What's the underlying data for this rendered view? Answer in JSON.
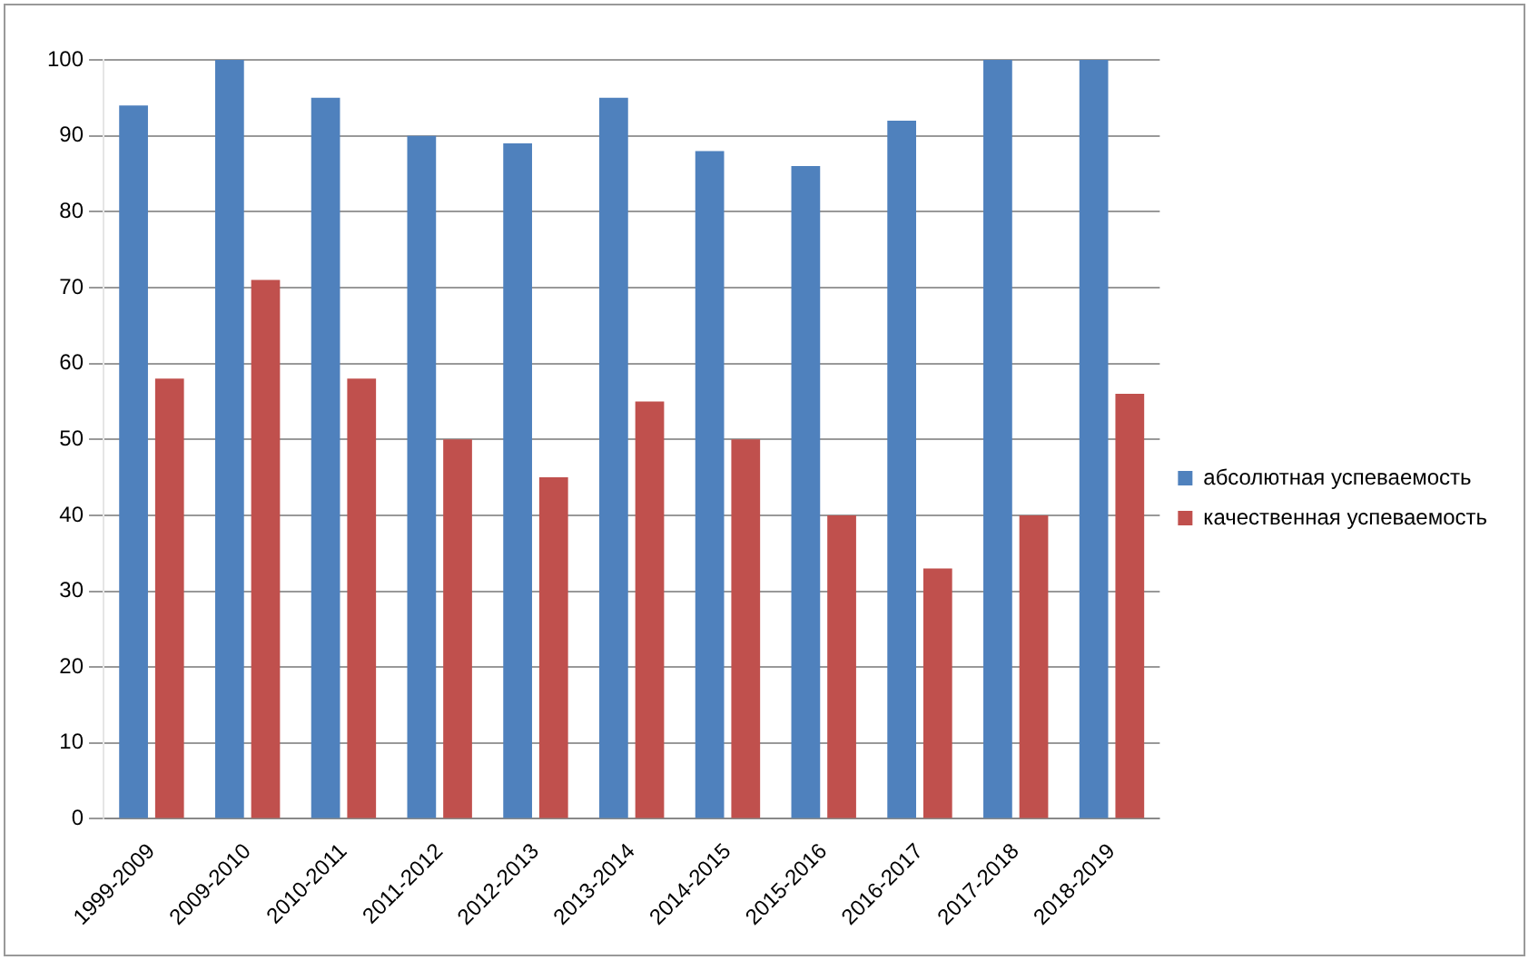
{
  "chart_data": {
    "type": "bar",
    "categories": [
      "1999-2009",
      "2009-2010",
      "2010-2011",
      "2011-2012",
      "2012-2013",
      "2013-2014",
      "2014-2015",
      "2015-2016",
      "2016-2017",
      "2017-2018",
      "2018-2019"
    ],
    "series": [
      {
        "name": "абсолютная успеваемость",
        "color": "#4f81bd",
        "values": [
          94,
          100,
          95,
          90,
          89,
          95,
          88,
          86,
          92,
          100,
          100
        ]
      },
      {
        "name": "качественная успеваемость",
        "color": "#c0504d",
        "values": [
          58,
          71,
          58,
          50,
          45,
          55,
          50,
          40,
          33,
          40,
          56
        ]
      }
    ],
    "ylim": [
      0,
      100
    ],
    "yticks": [
      0,
      10,
      20,
      30,
      40,
      50,
      60,
      70,
      80,
      90,
      100
    ],
    "grid": "y",
    "legend": "right"
  }
}
